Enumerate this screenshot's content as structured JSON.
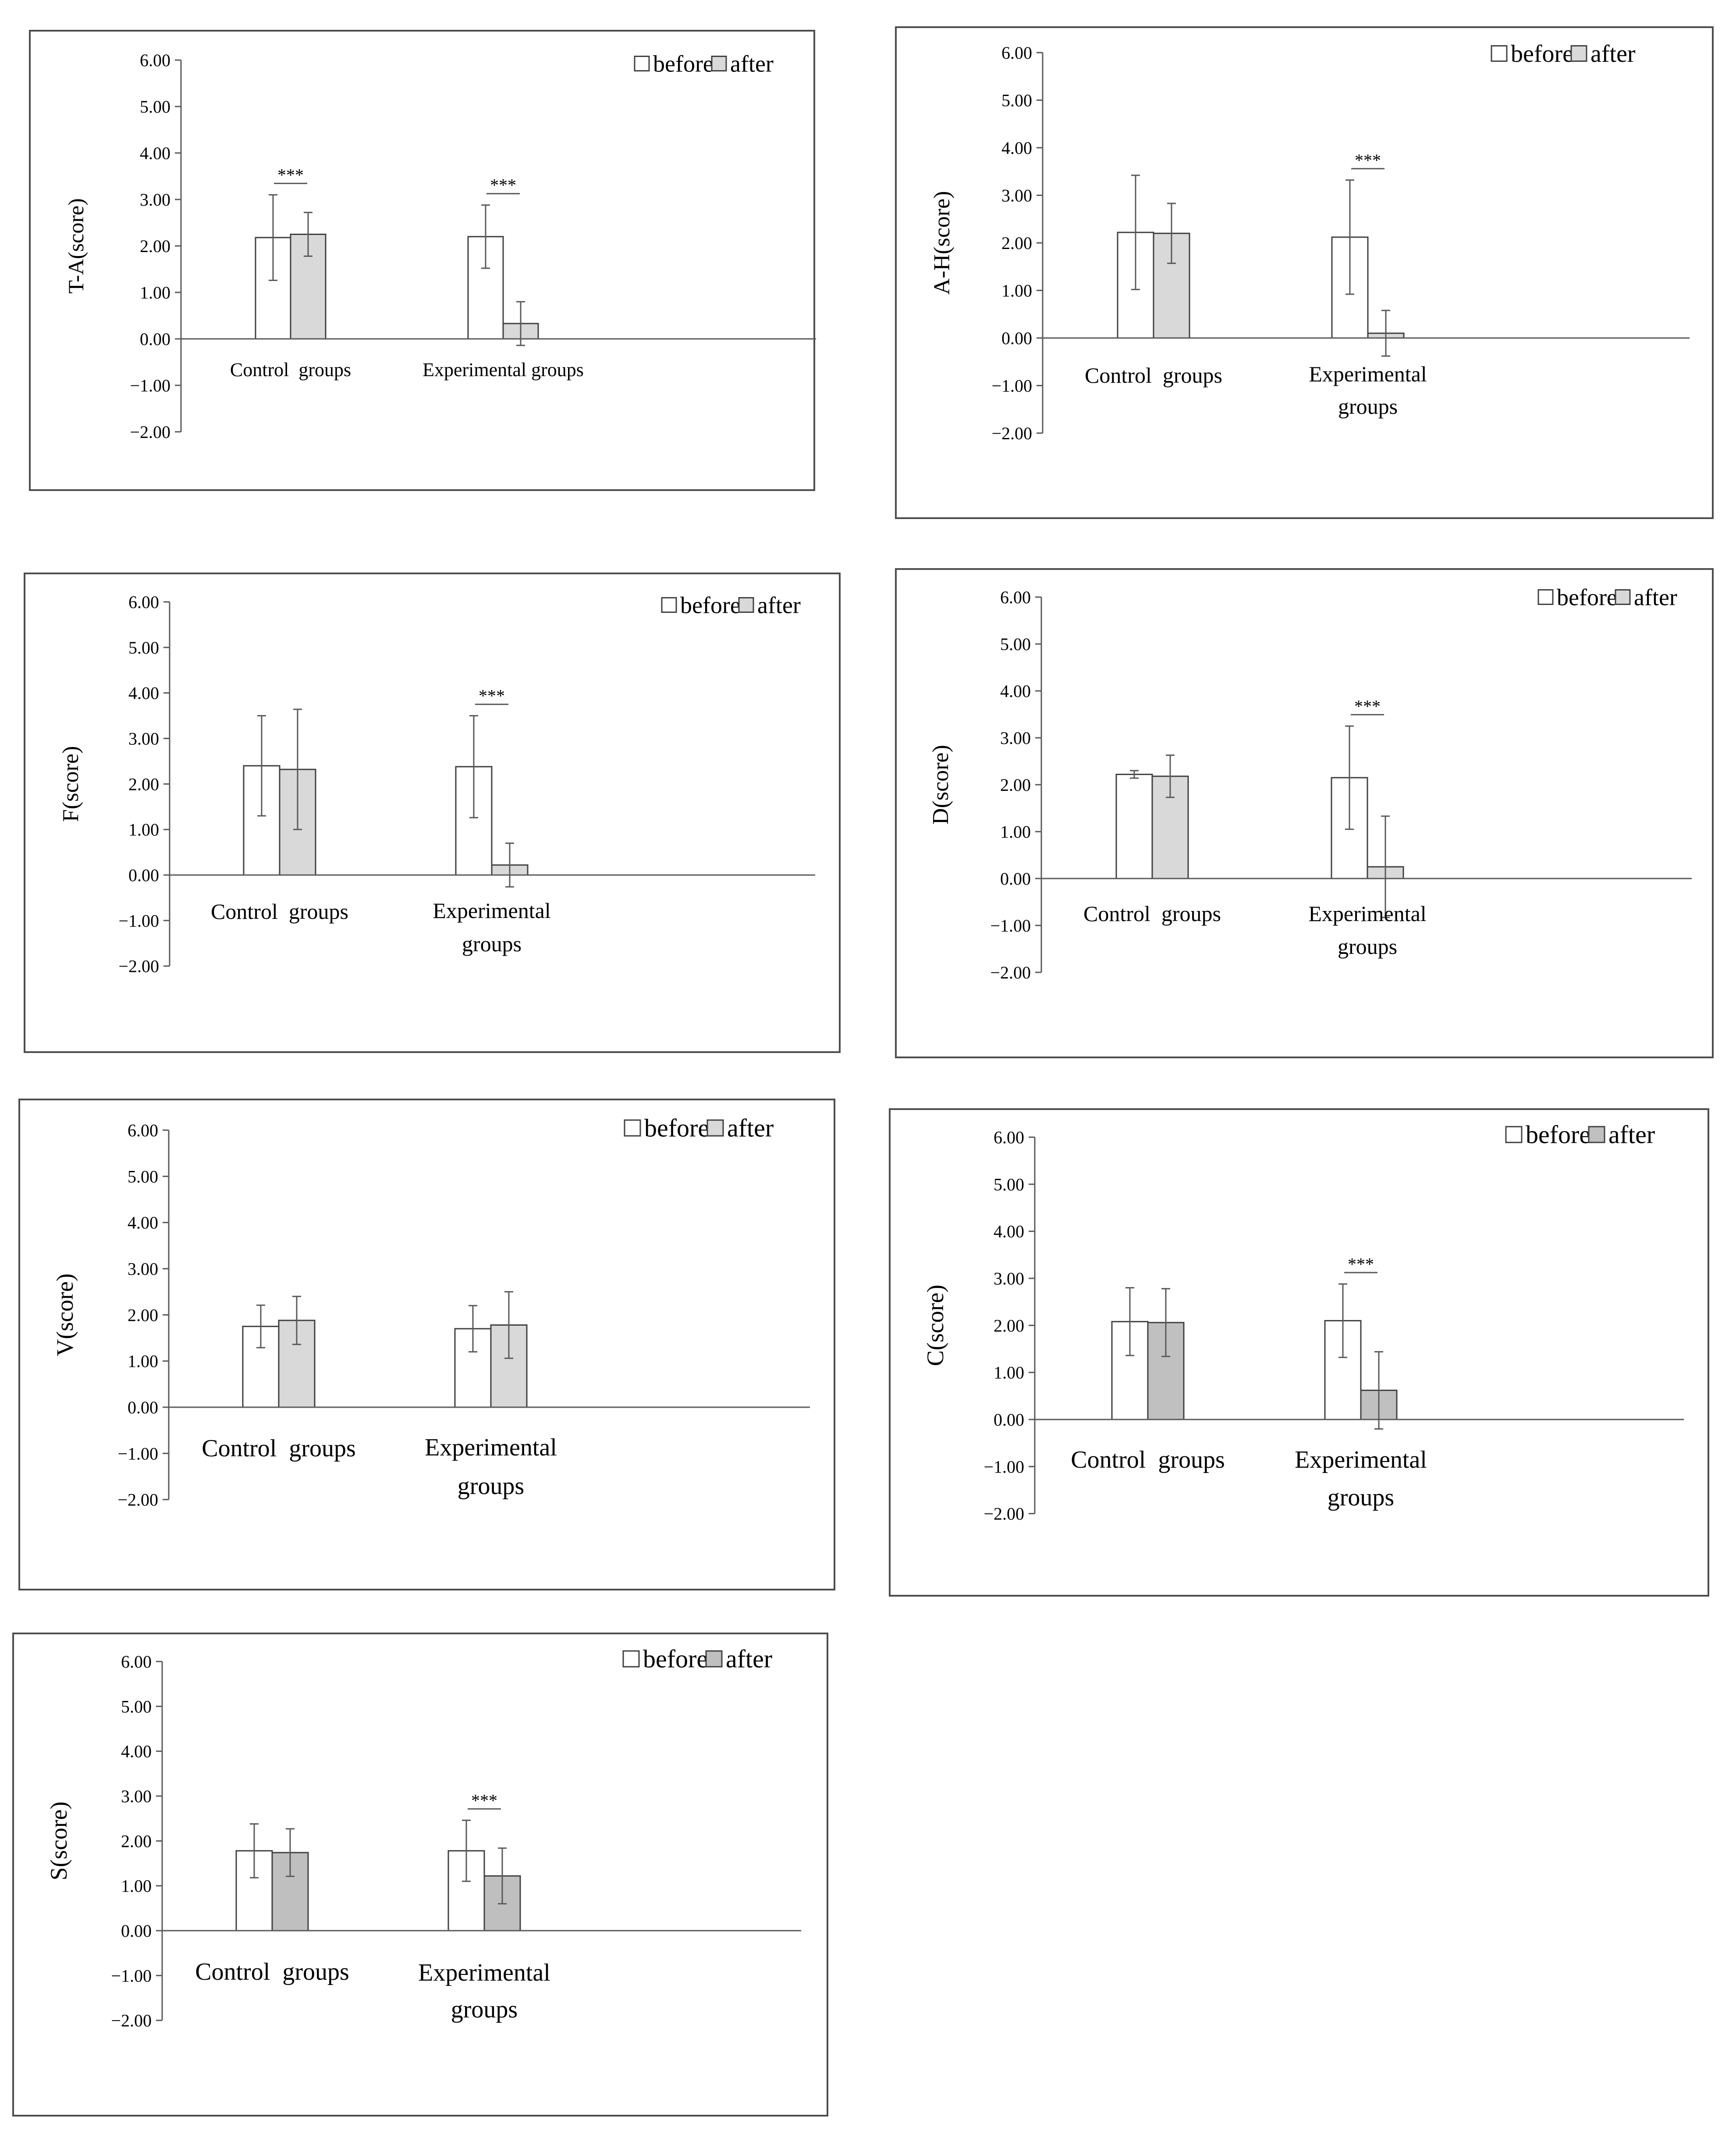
{
  "chart_data": [
    {
      "type": "bar",
      "ylabel": "T-A(score)",
      "categories": [
        "Control  groups",
        "Experimental groups"
      ],
      "series": [
        {
          "name": "before",
          "values": [
            2.18,
            2.2
          ],
          "errors": [
            0.92,
            0.68
          ],
          "color": "#ffffff"
        },
        {
          "name": "after",
          "values": [
            2.25,
            0.33
          ],
          "errors": [
            0.47,
            0.47
          ],
          "color": "#d9d9d9"
        }
      ],
      "significance": [
        "***",
        "***"
      ],
      "ylim": [
        -2,
        6
      ],
      "yticks": [
        "6.00",
        "5.00",
        "4.00",
        "3.00",
        "2.00",
        "1.00",
        "0.00",
        "−1.00",
        "−2.00"
      ],
      "legend": "top-right"
    },
    {
      "type": "bar",
      "ylabel": "A-H(score)",
      "categories": [
        "Control  groups",
        "Experimental groups"
      ],
      "series": [
        {
          "name": "before",
          "values": [
            2.22,
            2.12
          ],
          "errors": [
            1.2,
            1.2
          ],
          "color": "#ffffff"
        },
        {
          "name": "after",
          "values": [
            2.2,
            0.1
          ],
          "errors": [
            0.63,
            0.48
          ],
          "color": "#d9d9d9"
        }
      ],
      "significance": [
        "",
        "***"
      ],
      "ylim": [
        -2,
        6
      ],
      "yticks": [
        "6.00",
        "5.00",
        "4.00",
        "3.00",
        "2.00",
        "1.00",
        "0.00",
        "−1.00",
        "−2.00"
      ],
      "legend": "top-right"
    },
    {
      "type": "bar",
      "ylabel": "F(score)",
      "categories": [
        "Control  groups",
        "Experimental groups"
      ],
      "series": [
        {
          "name": "before",
          "values": [
            2.4,
            2.38
          ],
          "errors": [
            1.1,
            1.12
          ],
          "color": "#ffffff"
        },
        {
          "name": "after",
          "values": [
            2.32,
            0.22
          ],
          "errors": [
            1.32,
            0.48
          ],
          "color": "#d9d9d9"
        }
      ],
      "significance": [
        "",
        "***"
      ],
      "ylim": [
        -2,
        6
      ],
      "yticks": [
        "6.00",
        "5.00",
        "4.00",
        "3.00",
        "2.00",
        "1.00",
        "0.00",
        "−1.00",
        "−2.00"
      ],
      "legend": "top-right"
    },
    {
      "type": "bar",
      "ylabel": "D(score)",
      "categories": [
        "Control  groups",
        "Experimental groups"
      ],
      "series": [
        {
          "name": "before",
          "values": [
            2.22,
            2.15
          ],
          "errors": [
            0.08,
            1.1
          ],
          "color": "#ffffff"
        },
        {
          "name": "after",
          "values": [
            2.18,
            0.25
          ],
          "errors": [
            0.45,
            1.08
          ],
          "color": "#d9d9d9"
        }
      ],
      "significance": [
        "",
        "***"
      ],
      "ylim": [
        -2,
        6
      ],
      "yticks": [
        "6.00",
        "5.00",
        "4.00",
        "3.00",
        "2.00",
        "1.00",
        "0.00",
        "−1.00",
        "−2.00"
      ],
      "legend": "top-right"
    },
    {
      "type": "bar",
      "ylabel": "V(score)",
      "categories": [
        "Control  groups",
        "Experimental groups"
      ],
      "series": [
        {
          "name": "before",
          "values": [
            1.75,
            1.7
          ],
          "errors": [
            0.46,
            0.5
          ],
          "color": "#ffffff"
        },
        {
          "name": "after",
          "values": [
            1.88,
            1.78
          ],
          "errors": [
            0.52,
            0.72
          ],
          "color": "#d9d9d9"
        }
      ],
      "significance": [
        "",
        ""
      ],
      "ylim": [
        -2,
        6
      ],
      "yticks": [
        "6.00",
        "5.00",
        "4.00",
        "3.00",
        "2.00",
        "1.00",
        "0.00",
        "−1.00",
        "−2.00"
      ],
      "legend": "top-right"
    },
    {
      "type": "bar",
      "ylabel": "C(score)",
      "categories": [
        "Control  groups",
        "Experimental groups"
      ],
      "series": [
        {
          "name": "before",
          "values": [
            2.08,
            2.1
          ],
          "errors": [
            0.72,
            0.78
          ],
          "color": "#ffffff"
        },
        {
          "name": "after",
          "values": [
            2.06,
            0.62
          ],
          "errors": [
            0.72,
            0.82
          ],
          "color": "#c0c0c0"
        }
      ],
      "significance": [
        "",
        "***"
      ],
      "ylim": [
        -2,
        6
      ],
      "yticks": [
        "6.00",
        "5.00",
        "4.00",
        "3.00",
        "2.00",
        "1.00",
        "0.00",
        "−1.00",
        "−2.00"
      ],
      "legend": "top-right"
    },
    {
      "type": "bar",
      "ylabel": "S(score)",
      "categories": [
        "Control  groups",
        "Experimental groups"
      ],
      "series": [
        {
          "name": "before",
          "values": [
            1.78,
            1.78
          ],
          "errors": [
            0.6,
            0.68
          ],
          "color": "#ffffff"
        },
        {
          "name": "after",
          "values": [
            1.74,
            1.22
          ],
          "errors": [
            0.53,
            0.62
          ],
          "color": "#bfbfbf"
        }
      ],
      "significance": [
        "",
        "***"
      ],
      "ylim": [
        -2,
        6
      ],
      "yticks": [
        "6.00",
        "5.00",
        "4.00",
        "3.00",
        "2.00",
        "1.00",
        "0.00",
        "−1.00",
        "−2.00"
      ],
      "legend": "top-right"
    }
  ]
}
